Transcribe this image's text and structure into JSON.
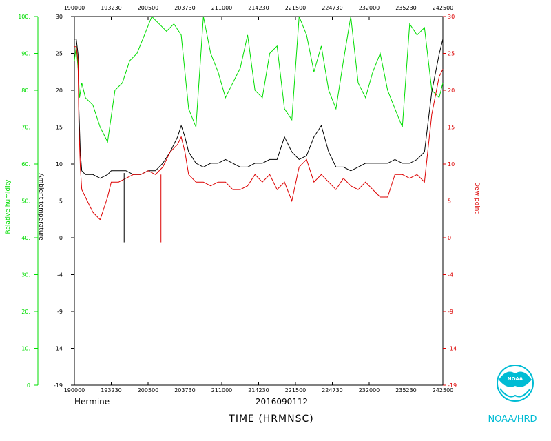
{
  "chart_data": {
    "type": "line",
    "storm_label": "Hermine",
    "date_label": "2016090112",
    "xlabel": "TIME (HRMNSC)",
    "x_ticks": [
      "190000",
      "193230",
      "200500",
      "203730",
      "211000",
      "214230",
      "221500",
      "224730",
      "232000",
      "235230",
      "242500"
    ],
    "y_left_label": "Relative humidity",
    "y_left_ticks": [
      "0",
      "10.",
      "20.",
      "30.",
      "40.",
      "50.",
      "60.",
      "70.",
      "80.",
      "90.",
      "100."
    ],
    "y_mid_label": "Ambient temperature",
    "y_mid_ticks": [
      "-19",
      "-14",
      "-9",
      "-4",
      "0",
      "5",
      "10",
      "15",
      "20",
      "25",
      "30"
    ],
    "y_right_label": "Dew point",
    "y_right_ticks": [
      "-19",
      "-14",
      "-9",
      "-4",
      "0",
      "5",
      "10",
      "15",
      "20",
      "25",
      "30"
    ],
    "x_range": [
      0,
      10
    ],
    "y_range_temp": [
      -19,
      30
    ],
    "y_range_rh": [
      0,
      100
    ],
    "series": [
      {
        "key": "rh",
        "color": "#00dd00",
        "axis": "rh",
        "x": [
          0,
          0.05,
          0.1,
          0.14,
          0.2,
          0.3,
          0.5,
          0.7,
          0.9,
          1.1,
          1.3,
          1.5,
          1.7,
          1.9,
          2.1,
          2.3,
          2.5,
          2.7,
          2.9,
          3.1,
          3.3,
          3.5,
          3.7,
          3.9,
          4.1,
          4.3,
          4.5,
          4.7,
          4.9,
          5.1,
          5.3,
          5.5,
          5.7,
          5.9,
          6.1,
          6.3,
          6.5,
          6.7,
          6.9,
          7.1,
          7.3,
          7.5,
          7.7,
          7.9,
          8.1,
          8.3,
          8.5,
          8.7,
          8.9,
          9.1,
          9.3,
          9.5,
          9.7,
          9.9,
          10
        ],
        "y": [
          88,
          92,
          86,
          78,
          82,
          78,
          76,
          70,
          66,
          80,
          82,
          88,
          90,
          95,
          100,
          98,
          96,
          98,
          95,
          75,
          70,
          100,
          90,
          85,
          78,
          82,
          86,
          95,
          80,
          78,
          90,
          92,
          75,
          72,
          100,
          95,
          85,
          92,
          80,
          75,
          88,
          100,
          82,
          78,
          85,
          90,
          80,
          75,
          70,
          98,
          95,
          97,
          80,
          78,
          82
        ]
      },
      {
        "key": "temp",
        "color": "#000000",
        "axis": "temp",
        "x": [
          0,
          0.05,
          0.1,
          0.12,
          0.16,
          0.2,
          0.3,
          0.5,
          0.7,
          0.9,
          1.0,
          1.2,
          1.4,
          1.6,
          1.8,
          2.0,
          2.2,
          2.4,
          2.6,
          2.8,
          2.9,
          3.0,
          3.1,
          3.3,
          3.5,
          3.7,
          3.9,
          4.1,
          4.3,
          4.5,
          4.7,
          4.9,
          5.1,
          5.3,
          5.5,
          5.7,
          5.9,
          6.1,
          6.3,
          6.5,
          6.7,
          6.9,
          7.1,
          7.3,
          7.5,
          7.7,
          7.9,
          8.1,
          8.3,
          8.5,
          8.7,
          8.9,
          9.1,
          9.3,
          9.5,
          9.7,
          9.9,
          10
        ],
        "y": [
          27,
          27,
          25,
          18,
          12,
          9.5,
          9,
          9,
          8.5,
          9,
          9.5,
          9.5,
          9.5,
          9,
          9,
          9.5,
          9.5,
          10.5,
          12,
          14,
          15.5,
          14,
          12,
          10.5,
          10,
          10.5,
          10.5,
          11,
          10.5,
          10,
          10,
          10.5,
          10.5,
          11,
          11,
          14,
          12,
          11,
          11.5,
          14,
          15.5,
          12,
          10,
          10,
          9.5,
          10,
          10.5,
          10.5,
          10.5,
          10.5,
          11,
          10.5,
          10.5,
          11,
          12,
          20,
          25,
          27
        ]
      },
      {
        "key": "dewpoint",
        "color": "#dd0000",
        "axis": "temp",
        "x": [
          0,
          0.05,
          0.1,
          0.12,
          0.16,
          0.2,
          0.3,
          0.5,
          0.7,
          0.9,
          1.0,
          1.2,
          1.4,
          1.6,
          1.8,
          2.0,
          2.2,
          2.4,
          2.6,
          2.8,
          2.9,
          3.0,
          3.1,
          3.3,
          3.5,
          3.7,
          3.9,
          4.1,
          4.3,
          4.5,
          4.7,
          4.9,
          5.1,
          5.3,
          5.5,
          5.7,
          5.9,
          6.1,
          6.3,
          6.5,
          6.7,
          6.9,
          7.1,
          7.3,
          7.5,
          7.7,
          7.9,
          8.1,
          8.3,
          8.5,
          8.7,
          8.9,
          9.1,
          9.3,
          9.5,
          9.7,
          9.9,
          10
        ],
        "y": [
          26,
          26,
          24,
          16,
          10,
          7,
          6,
          4,
          3,
          6,
          8,
          8,
          8.5,
          9,
          9,
          9.5,
          9,
          10,
          12,
          13,
          14,
          12,
          9,
          8,
          8,
          7.5,
          8,
          8,
          7,
          7,
          7.5,
          9,
          8,
          9,
          7,
          8,
          5.5,
          10,
          11,
          8,
          9,
          8,
          7,
          8.5,
          7.5,
          7,
          8,
          7,
          6,
          6,
          9,
          9,
          8.5,
          9,
          8,
          17,
          22,
          23
        ]
      }
    ],
    "spikes": [
      {
        "series": "temp",
        "x": 1.35,
        "from": 9.2,
        "to": 0
      },
      {
        "series": "dewpoint",
        "x": 2.35,
        "from": 9.0,
        "to": 0
      }
    ]
  },
  "logo": {
    "name": "noaa-logo",
    "caption": "NOAA/HRD",
    "color": "#00bcd4"
  }
}
